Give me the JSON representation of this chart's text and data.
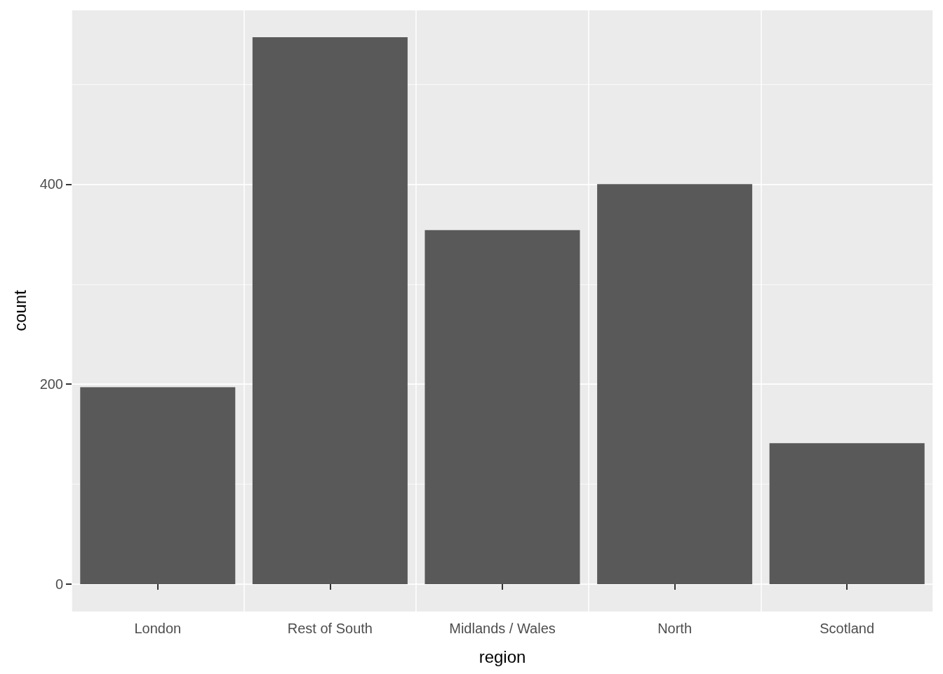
{
  "chart_data": {
    "type": "bar",
    "xlabel": "region",
    "ylabel": "count",
    "categories": [
      "London",
      "Rest of South",
      "Midlands / Wales",
      "North",
      "Scotland"
    ],
    "values": [
      197,
      547,
      354,
      400,
      141
    ],
    "color": "#595959",
    "ylim": [
      -27.35,
      574.35
    ],
    "yticks": [
      0,
      200,
      400
    ],
    "grid": true
  }
}
